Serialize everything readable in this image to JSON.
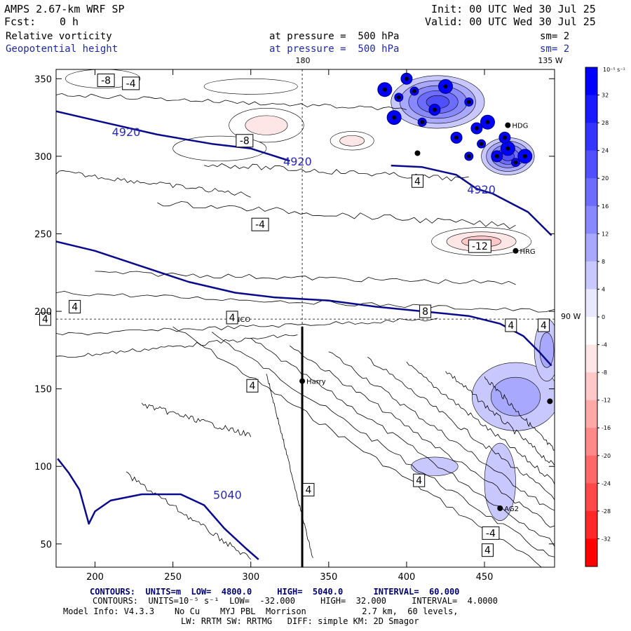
{
  "header": {
    "model": "AMPS 2.67-km WRF SP",
    "fcst_label": "Fcst:",
    "fcst_value": "0 h",
    "init": "Init: 00 UTC Wed 30 Jul 25",
    "valid": "Valid: 00 UTC Wed 30 Jul 25",
    "field1": "Relative vorticity",
    "field2": "Geopotential height",
    "pressure1": "at pressure =  500 hPa",
    "pressure2": "at pressure =  500 hPa",
    "smooth1": "sm= 2",
    "smooth2": "sm= 2"
  },
  "map_labels": {
    "lon_180": "180",
    "lon_135w": "135 W",
    "lon_90w": "90 W"
  },
  "colorbar": {
    "unit": "10⁻⁵ s⁻¹",
    "ticks": [
      32,
      28,
      24,
      20,
      16,
      12,
      8,
      4,
      0,
      -4,
      -8,
      -12,
      -16,
      -20,
      -24,
      -28,
      -32
    ],
    "colors": [
      "#0000ff",
      "#1a1aff",
      "#3434ff",
      "#5050ff",
      "#6c6cff",
      "#8888ff",
      "#a8a8ff",
      "#c8c8ff",
      "#e8e8ff",
      "#ffffff",
      "#ffe6e6",
      "#ffc8c8",
      "#ffa8a8",
      "#ff8888",
      "#ff6868",
      "#ff4848",
      "#ff2828",
      "#ff0000"
    ]
  },
  "chart_data": {
    "type": "contour",
    "xlim": [
      175,
      495
    ],
    "ylim": [
      35,
      356
    ],
    "x_ticks": [
      200,
      250,
      300,
      350,
      400,
      450
    ],
    "y_ticks": [
      50,
      100,
      150,
      200,
      250,
      300,
      350
    ],
    "height_contours": [
      {
        "label": "4920",
        "points": [
          [
            175,
            329
          ],
          [
            205,
            322
          ],
          [
            240,
            314
          ],
          [
            275,
            308
          ],
          [
            300,
            305
          ],
          [
            325,
            297
          ]
        ]
      },
      {
        "label": "4920",
        "points": [
          [
            390,
            294
          ],
          [
            410,
            293
          ],
          [
            432,
            288
          ],
          [
            445,
            279
          ],
          [
            455,
            276
          ],
          [
            478,
            264
          ],
          [
            493,
            249
          ]
        ]
      },
      {
        "label": "5040",
        "points": [
          [
            176,
            105
          ],
          [
            183,
            96
          ],
          [
            190,
            85
          ],
          [
            196,
            63
          ],
          [
            200,
            71
          ],
          [
            210,
            78
          ],
          [
            230,
            82
          ],
          [
            255,
            82
          ],
          [
            270,
            75
          ],
          [
            283,
            60
          ],
          [
            297,
            47
          ],
          [
            305,
            40
          ]
        ]
      },
      {
        "label": "",
        "points": [
          [
            175,
            245
          ],
          [
            200,
            239
          ],
          [
            230,
            229
          ],
          [
            260,
            219
          ],
          [
            290,
            212
          ],
          [
            315,
            209
          ],
          [
            350,
            207
          ],
          [
            380,
            203
          ],
          [
            410,
            200
          ],
          [
            440,
            197
          ],
          [
            460,
            192
          ],
          [
            475,
            184
          ],
          [
            485,
            174
          ],
          [
            493,
            165
          ]
        ]
      }
    ],
    "height_labels": [
      {
        "text": "4920",
        "x": 220,
        "y": 313
      },
      {
        "text": "4920",
        "x": 330,
        "y": 294
      },
      {
        "text": "4920",
        "x": 448,
        "y": 276
      },
      {
        "text": "5040",
        "x": 285,
        "y": 79
      }
    ],
    "vorticity_blobs": [
      {
        "x": 310,
        "y": 320,
        "rx": 24,
        "ry": 11,
        "value": -8
      },
      {
        "x": 365,
        "y": 310,
        "rx": 14,
        "ry": 6,
        "value": -8
      },
      {
        "x": 448,
        "y": 245,
        "rx": 32,
        "ry": 9,
        "value": -12
      },
      {
        "x": 205,
        "y": 350,
        "rx": 24,
        "ry": 6,
        "value": -4
      },
      {
        "x": 300,
        "y": 345,
        "rx": 30,
        "ry": 5,
        "value": -4
      },
      {
        "x": 280,
        "y": 305,
        "rx": 30,
        "ry": 8,
        "value": -4
      },
      {
        "x": 420,
        "y": 335,
        "rx": 30,
        "ry": 17,
        "value": 24
      },
      {
        "x": 465,
        "y": 300,
        "rx": 17,
        "ry": 12,
        "value": 20
      },
      {
        "x": 470,
        "y": 145,
        "rx": 28,
        "ry": 22,
        "value": 8
      },
      {
        "x": 418,
        "y": 100,
        "rx": 15,
        "ry": 6,
        "value": 4
      },
      {
        "x": 460,
        "y": 90,
        "rx": 10,
        "ry": 25,
        "value": 4
      },
      {
        "x": 490,
        "y": 175,
        "rx": 8,
        "ry": 20,
        "value": 8
      }
    ],
    "vorticity_labels": [
      {
        "text": "-8",
        "x": 207,
        "y": 349
      },
      {
        "text": "-4",
        "x": 223,
        "y": 347
      },
      {
        "text": "-8",
        "x": 296,
        "y": 310
      },
      {
        "text": "4",
        "x": 407,
        "y": 284
      },
      {
        "text": "-4",
        "x": 306,
        "y": 256
      },
      {
        "text": "-12",
        "x": 447,
        "y": 242
      },
      {
        "text": "4",
        "x": 187,
        "y": 203
      },
      {
        "text": "4",
        "x": 168,
        "y": 195
      },
      {
        "text": "4",
        "x": 288,
        "y": 196
      },
      {
        "text": "8",
        "x": 412,
        "y": 200
      },
      {
        "text": "4",
        "x": 467,
        "y": 191
      },
      {
        "text": "4",
        "x": 488,
        "y": 191
      },
      {
        "text": "4",
        "x": 301,
        "y": 152
      },
      {
        "text": "4",
        "x": 408,
        "y": 91
      },
      {
        "text": "4",
        "x": 337,
        "y": 85
      },
      {
        "text": "-4",
        "x": 454,
        "y": 57
      },
      {
        "text": "4",
        "x": 452,
        "y": 46
      }
    ],
    "stations": [
      {
        "name": "NCO",
        "x": 287,
        "y": 195
      },
      {
        "name": "HRG",
        "x": 470,
        "y": 239
      },
      {
        "name": "Harry",
        "x": 333,
        "y": 155
      },
      {
        "name": "AG2",
        "x": 460,
        "y": 73
      },
      {
        "name": "HDG",
        "x": 465,
        "y": 320
      },
      {
        "name": "",
        "x": 407,
        "y": 302
      },
      {
        "name": "",
        "x": 492,
        "y": 142
      }
    ],
    "reference_lines": {
      "lon_180_x": 333,
      "lat_90w_y": 195
    },
    "cross_section": {
      "x": 333,
      "y_from": 35,
      "y_to": 190
    }
  },
  "footer": {
    "contours1": "CONTOURS:  UNITS=m  LOW=  4800.0     HIGH=  5040.0      INTERVAL=  60.000",
    "contours2": "CONTOURS:  UNITS=10⁻⁵ s⁻¹  LOW=  -32.000     HIGH=  32.000     INTERVAL=  4.0000",
    "model_info": "Model Info: V4.3.3    No Cu    MYJ PBL  Morrison           2.7 km,  60 levels,",
    "model_info2": "LW: RRTM SW: RRTMG   DIFF: simple KM: 2D Smagor"
  }
}
